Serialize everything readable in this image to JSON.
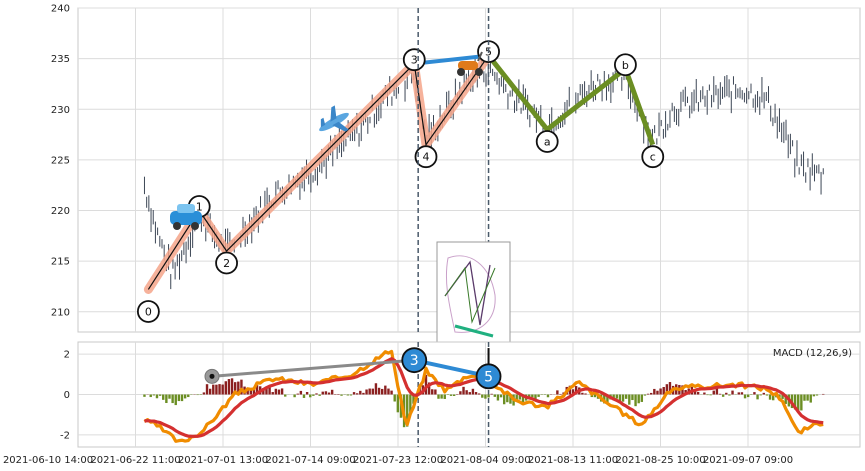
{
  "chart_data": {
    "type": "candlestick",
    "price_panel": {
      "ylim": [
        208,
        240
      ],
      "y_ticks": [
        "210",
        "215",
        "220",
        "225",
        "230",
        "235",
        "240"
      ],
      "grid": true,
      "wave_points": [
        {
          "label": "0",
          "x": 0.09,
          "y": 212.2
        },
        {
          "label": "1",
          "x": 0.155,
          "y": 220.0
        },
        {
          "label": "2",
          "x": 0.19,
          "y": 216.0
        },
        {
          "label": "3",
          "x": 0.43,
          "y": 234.5
        },
        {
          "label": "4",
          "x": 0.445,
          "y": 226.5
        },
        {
          "label": "5",
          "x": 0.525,
          "y": 235.3
        },
        {
          "label": "a",
          "x": 0.6,
          "y": 228.0
        },
        {
          "label": "b",
          "x": 0.7,
          "y": 234.0
        },
        {
          "label": "c",
          "x": 0.735,
          "y": 226.5
        }
      ],
      "corrective_color": "#6b8e23",
      "impulse_highlight_color": "#f4a58a",
      "connector_color": "#2e8ad4",
      "vertical_markers_x": [
        0.435,
        0.525
      ],
      "marker_color": "#4a5a6a"
    },
    "macd_panel": {
      "title": "MACD (12,26,9)",
      "ylim": [
        -2.6,
        2.6
      ],
      "y_ticks": [
        "-2",
        "0",
        "2"
      ],
      "macd_color": "#f08c00",
      "signal_color": "#d43030",
      "hist_pos_color": "#8b2020",
      "hist_neg_color": "#6b8e23",
      "markers": [
        {
          "label": "3",
          "x": 0.43,
          "y": 1.7,
          "color": "#2e8ad4"
        },
        {
          "label": "5",
          "x": 0.525,
          "y": 0.9,
          "color": "#2e8ad4"
        }
      ]
    },
    "x_tick_labels": [
      "2021-06-10 14:00",
      "2021-06-22 11:00",
      "2021-07-01 13:00",
      "2021-07-14 09:00",
      "2021-07-23 12:00",
      "2021-08-04 09:00",
      "2021-08-13 11:00",
      "2021-08-25 10:00",
      "2021-09-07 09:00"
    ]
  }
}
